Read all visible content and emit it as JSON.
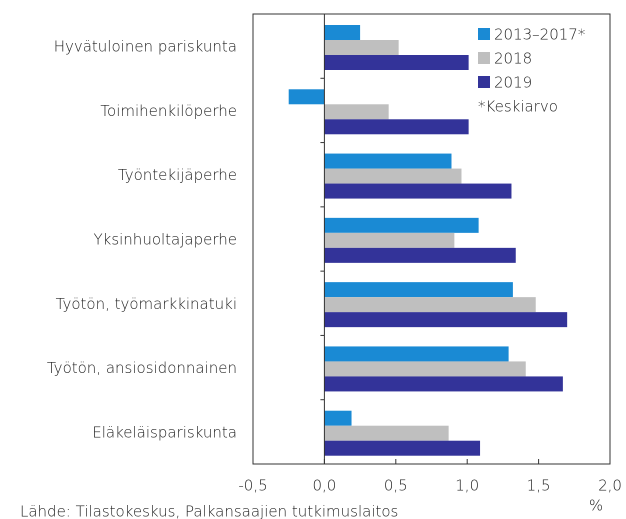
{
  "chart_data": {
    "type": "barh",
    "categories": [
      "Hyvätuloinen pariskunta",
      "Toimihenkilöperhe",
      "Työntekijäperhe",
      "Yksinhuoltajaperhe",
      "Työtön, työmarkkinatuki",
      "Työtön, ansiosidonnainen",
      "Eläkeläispariskunta"
    ],
    "series": [
      {
        "name": "2013–2017*",
        "color": "#1a8ad4",
        "values": [
          0.25,
          -0.25,
          0.89,
          1.08,
          1.32,
          1.29,
          0.19
        ]
      },
      {
        "name": "2018",
        "color": "#bfbfbf",
        "values": [
          0.52,
          0.45,
          0.96,
          0.91,
          1.48,
          1.41,
          0.87
        ]
      },
      {
        "name": "2019",
        "color": "#333399",
        "values": [
          1.01,
          1.01,
          1.31,
          1.34,
          1.7,
          1.67,
          1.09
        ]
      }
    ],
    "xlim": [
      -0.5,
      2.0
    ],
    "xticks": [
      {
        "value": -0.5,
        "label": "-0,5"
      },
      {
        "value": 0,
        "label": "0,0"
      },
      {
        "value": 0.5,
        "label": "0,5"
      },
      {
        "value": 1,
        "label": "1,0"
      },
      {
        "value": 1.5,
        "label": "1,5"
      },
      {
        "value": 2,
        "label": "2,0"
      }
    ],
    "xlabel": "%",
    "legend": "upper right",
    "note": "*Keskiarvo",
    "source": "Lähde: Tilastokeskus, Palkansaajien tutkimuslaitos"
  }
}
